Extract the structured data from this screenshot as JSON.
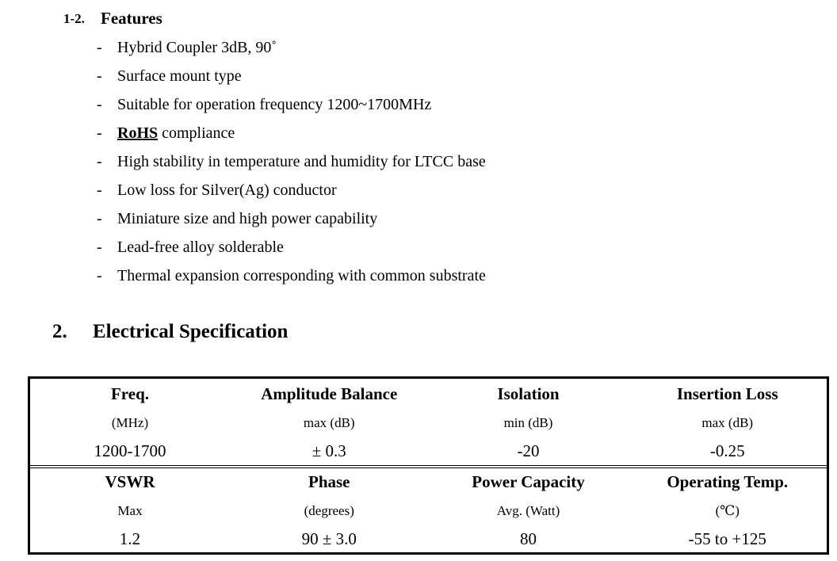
{
  "features": {
    "number": "1-2.",
    "title": "Features",
    "items": [
      {
        "text": "Hybrid Coupler 3dB, 90˚"
      },
      {
        "text": "Surface mount type"
      },
      {
        "text": "Suitable for operation frequency 1200~1700MHz"
      },
      {
        "strong": "RoHS",
        "text": "compliance"
      },
      {
        "text": "High stability in temperature and humidity for LTCC base"
      },
      {
        "text": "Low loss for Silver(Ag) conductor"
      },
      {
        "text": "Miniature size and high power capability"
      },
      {
        "text": "Lead-free alloy solderable"
      },
      {
        "text": "Thermal expansion corresponding with common substrate"
      }
    ]
  },
  "specification": {
    "number": "2.",
    "title": "Electrical Specification",
    "table": {
      "blocks": [
        {
          "headers": [
            "Freq.",
            "Amplitude Balance",
            "Isolation",
            "Insertion Loss"
          ],
          "units": [
            "(MHz)",
            "max (dB)",
            "min (dB)",
            "max (dB)"
          ],
          "values": [
            "1200-1700",
            "± 0.3",
            "-20",
            "-0.25"
          ]
        },
        {
          "headers": [
            "VSWR",
            "Phase",
            "Power Capacity",
            "Operating Temp."
          ],
          "units": [
            "Max",
            "(degrees)",
            "Avg. (Watt)",
            "(℃)"
          ],
          "values": [
            "1.2",
            "90 ± 3.0",
            "80",
            "-55 to +125"
          ]
        }
      ]
    }
  }
}
